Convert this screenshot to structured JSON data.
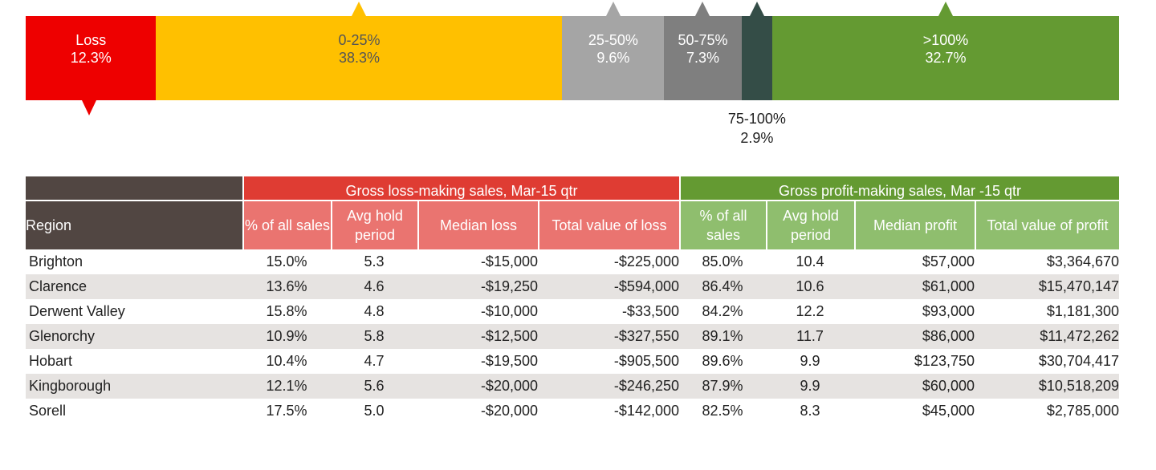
{
  "chart_data": [
    {
      "type": "bar",
      "categories": [
        "Loss",
        "0-25%",
        "25-50%",
        "50-75%",
        "75-100%",
        ">100%"
      ],
      "values": [
        12.3,
        38.3,
        9.6,
        7.3,
        2.9,
        32.7
      ],
      "value_labels": [
        "12.3%",
        "38.3%",
        "9.6%",
        "7.3%",
        "2.9%",
        "32.7%"
      ],
      "colors": [
        "#ee0000",
        "#ffc000",
        "#a5a5a5",
        "#7f7f7f",
        "#344d47",
        "#649a32"
      ],
      "stacked": true,
      "orientation": "horizontal"
    }
  ],
  "table": {
    "group_headers": {
      "loss": "Gross loss-making sales, Mar-15 qtr",
      "profit": "Gross profit-making sales, Mar -15 qtr"
    },
    "columns": [
      "Region",
      "% of all sales",
      "Avg hold period",
      "Median loss",
      "Total value of loss",
      "% of all sales",
      "Avg hold period",
      "Median profit",
      "Total value of profit"
    ],
    "rows": [
      [
        "Brighton",
        "15.0%",
        "5.3",
        "-$15,000",
        "-$225,000",
        "85.0%",
        "10.4",
        "$57,000",
        "$3,364,670"
      ],
      [
        "Clarence",
        "13.6%",
        "4.6",
        "-$19,250",
        "-$594,000",
        "86.4%",
        "10.6",
        "$61,000",
        "$15,470,147"
      ],
      [
        "Derwent Valley",
        "15.8%",
        "4.8",
        "-$10,000",
        "-$33,500",
        "84.2%",
        "12.2",
        "$93,000",
        "$1,181,300"
      ],
      [
        "Glenorchy",
        "10.9%",
        "5.8",
        "-$12,500",
        "-$327,550",
        "89.1%",
        "11.7",
        "$86,000",
        "$11,472,262"
      ],
      [
        "Hobart",
        "10.4%",
        "4.7",
        "-$19,500",
        "-$905,500",
        "89.6%",
        "9.9",
        "$123,750",
        "$30,704,417"
      ],
      [
        "Kingborough",
        "12.1%",
        "5.6",
        "-$20,000",
        "-$246,250",
        "87.9%",
        "9.9",
        "$60,000",
        "$10,518,209"
      ],
      [
        "Sorell",
        "17.5%",
        "5.0",
        "-$20,000",
        "-$142,000",
        "82.5%",
        "8.3",
        "$45,000",
        "$2,785,000"
      ]
    ],
    "colors": {
      "region_header": "#514642",
      "loss_group": "#df3c33",
      "loss_sub": "#ea7470",
      "profit_group": "#649a32",
      "profit_sub": "#8fbe6e",
      "row_shade": "#e6e3e1"
    }
  }
}
